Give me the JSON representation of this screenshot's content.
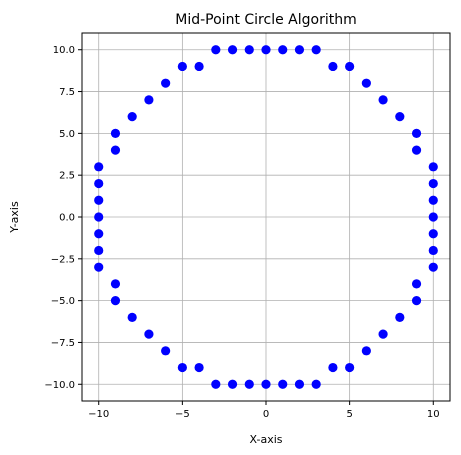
{
  "chart_data": {
    "type": "scatter",
    "title": "Mid-Point Circle Algorithm",
    "xlabel": "X-axis",
    "ylabel": "Y-axis",
    "xlim": [
      -11,
      11
    ],
    "ylim": [
      -11,
      11
    ],
    "xticks": [
      -10,
      -5,
      0,
      5,
      10
    ],
    "xtick_labels": [
      "−10",
      "−5",
      "0",
      "5",
      "10"
    ],
    "yticks": [
      -10,
      -7.5,
      -5,
      -2.5,
      0,
      2.5,
      5,
      7.5,
      10
    ],
    "ytick_labels": [
      "−10.0",
      "−7.5",
      "−5.0",
      "−2.5",
      "0.0",
      "2.5",
      "5.0",
      "7.5",
      "10.0"
    ],
    "grid": true,
    "aspect": "equal",
    "marker_color": "#0000ff",
    "points": [
      [
        0,
        10
      ],
      [
        1,
        10
      ],
      [
        2,
        10
      ],
      [
        3,
        10
      ],
      [
        -1,
        10
      ],
      [
        -2,
        10
      ],
      [
        -3,
        10
      ],
      [
        4,
        9
      ],
      [
        5,
        9
      ],
      [
        -4,
        9
      ],
      [
        -5,
        9
      ],
      [
        6,
        8
      ],
      [
        -6,
        8
      ],
      [
        7,
        7
      ],
      [
        -7,
        7
      ],
      [
        8,
        6
      ],
      [
        -8,
        6
      ],
      [
        9,
        5
      ],
      [
        -9,
        5
      ],
      [
        9,
        4
      ],
      [
        -9,
        4
      ],
      [
        10,
        3
      ],
      [
        10,
        2
      ],
      [
        10,
        1
      ],
      [
        10,
        0
      ],
      [
        10,
        -1
      ],
      [
        10,
        -2
      ],
      [
        10,
        -3
      ],
      [
        -10,
        3
      ],
      [
        -10,
        2
      ],
      [
        -10,
        1
      ],
      [
        -10,
        0
      ],
      [
        -10,
        -1
      ],
      [
        -10,
        -2
      ],
      [
        -10,
        -3
      ],
      [
        9,
        -4
      ],
      [
        -9,
        -4
      ],
      [
        9,
        -5
      ],
      [
        -9,
        -5
      ],
      [
        8,
        -6
      ],
      [
        -8,
        -6
      ],
      [
        7,
        -7
      ],
      [
        -7,
        -7
      ],
      [
        6,
        -8
      ],
      [
        -6,
        -8
      ],
      [
        4,
        -9
      ],
      [
        5,
        -9
      ],
      [
        -4,
        -9
      ],
      [
        -5,
        -9
      ],
      [
        0,
        -10
      ],
      [
        1,
        -10
      ],
      [
        2,
        -10
      ],
      [
        3,
        -10
      ],
      [
        -1,
        -10
      ],
      [
        -2,
        -10
      ],
      [
        -3,
        -10
      ]
    ]
  }
}
